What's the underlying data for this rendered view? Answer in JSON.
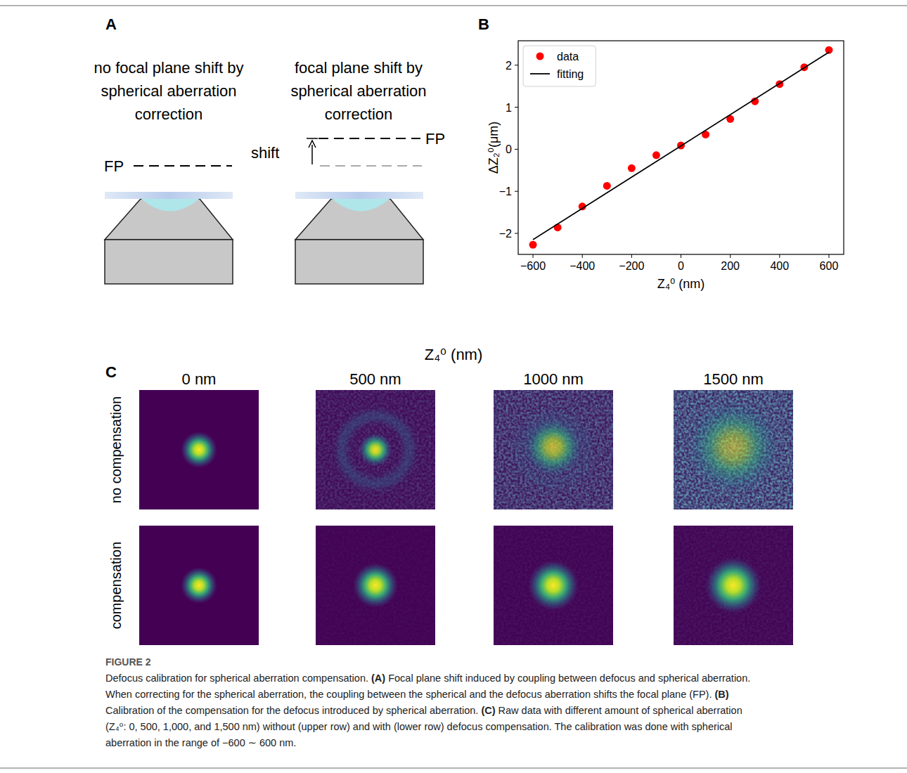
{
  "panel_letters": {
    "a": "A",
    "b": "B",
    "c": "C"
  },
  "panel_a": {
    "left_title_lines": [
      "no focal plane shift by",
      "spherical aberration",
      "correction"
    ],
    "right_title_lines": [
      "focal plane shift by",
      "spherical aberration",
      "correction"
    ],
    "fp_label": "FP",
    "shift_label": "shift"
  },
  "chart_data": {
    "type": "scatter",
    "x_label": "Z₄⁰ (nm)",
    "y_label": "ΔZ₂⁰(μm)",
    "x": [
      -600,
      -500,
      -400,
      -300,
      -200,
      -100,
      0,
      100,
      200,
      300,
      400,
      500,
      600
    ],
    "series": [
      {
        "name": "data",
        "type": "scatter",
        "color": "#ff0000",
        "marker": "circle",
        "values": [
          -2.27,
          -1.86,
          -1.36,
          -0.87,
          -0.45,
          -0.14,
          0.09,
          0.35,
          0.72,
          1.14,
          1.55,
          1.95,
          2.36
        ]
      },
      {
        "name": "fitting",
        "type": "line",
        "color": "#000000",
        "line_style": "solid",
        "x": [
          -600,
          600
        ],
        "values": [
          -2.15,
          2.31
        ]
      }
    ],
    "xlim": [
      -660,
      660
    ],
    "ylim": [
      -2.5,
      2.58
    ],
    "xticks": [
      {
        "value": -600,
        "label": "−600"
      },
      {
        "value": -400,
        "label": "−400"
      },
      {
        "value": -200,
        "label": "−200"
      },
      0,
      200,
      400,
      600
    ],
    "yticks": [
      {
        "value": -2,
        "label": "−2"
      },
      {
        "value": -1,
        "label": "−1"
      },
      0,
      1,
      2
    ],
    "legend": "upper left",
    "grid": false
  },
  "panel_c": {
    "title": "Z₄⁰ (nm)",
    "columns": [
      "0 nm",
      "500 nm",
      "1000 nm",
      "1500 nm"
    ],
    "rows": [
      "no compensation",
      "compensation"
    ]
  },
  "caption": {
    "label": "FIGURE 2",
    "lines": [
      "Defocus calibration for spherical aberration compensation. (A) Focal plane shift induced by coupling between defocus and spherical aberration.",
      "When correcting for the spherical aberration, the coupling between the spherical and the defocus aberration shifts the focal plane (FP). (B)",
      "Calibration of the compensation for the defocus introduced by spherical aberration. (C) Raw data with different amount of spherical aberration",
      "(Z₄⁰: 0, 500, 1,000, and 1,500 nm) without (upper row) and with (lower row) defocus compensation. The calibration was done with spherical",
      "aberration in the range of −600 ∼ 600 nm."
    ]
  }
}
